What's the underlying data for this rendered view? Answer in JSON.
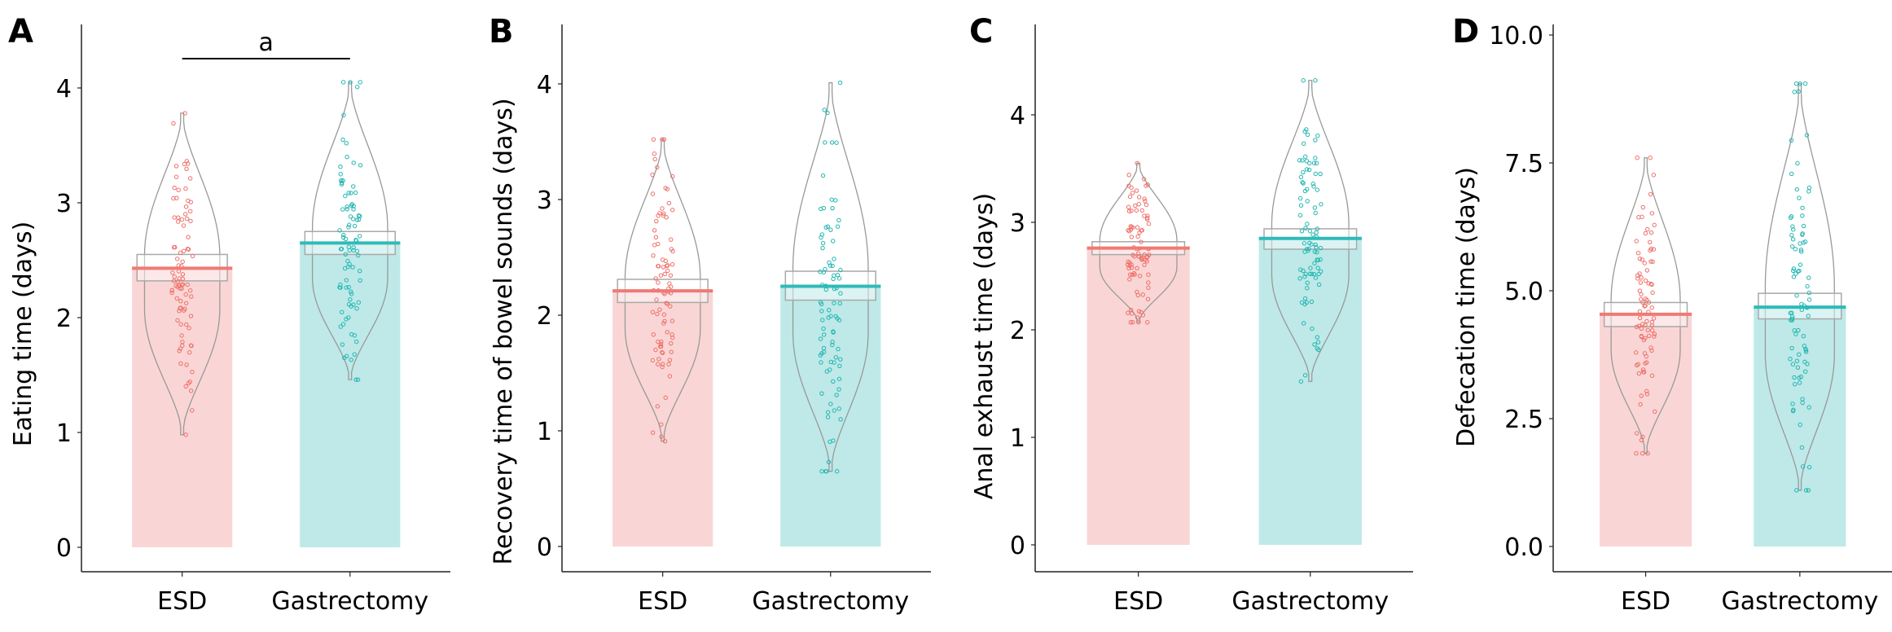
{
  "figure": {
    "colors": {
      "esd_fill": "#f9d6d5",
      "esd_line": "#f07a74",
      "esd_point": "#ee6f69",
      "gastrectomy_fill": "#bee9e8",
      "gastrectomy_line": "#2fbbb8",
      "gastrectomy_point": "#22b6b2",
      "violin": "#999999",
      "ci_box": "#a9a9a9"
    }
  },
  "chart_data": [
    {
      "panel": "A",
      "type": "bar",
      "subtype": "pirate plot (bar + violin + jittered points + 95% CI box)",
      "title": "",
      "xlabel": "",
      "ylabel": "Eating time (days)",
      "ylim": [
        -0.2,
        4.5
      ],
      "yticks": [
        0,
        1,
        2,
        3,
        4
      ],
      "ytick_labels": [
        "0",
        "1",
        "2",
        "3",
        "4"
      ],
      "categories": [
        "ESD",
        "Gastrectomy"
      ],
      "values": [
        2.43,
        2.65
      ],
      "ci": [
        [
          2.32,
          2.55
        ],
        [
          2.55,
          2.75
        ]
      ],
      "ranges": [
        [
          0.98,
          3.78
        ],
        [
          1.46,
          4.05
        ]
      ],
      "significance": {
        "label": "a",
        "between": [
          "ESD",
          "Gastrectomy"
        ],
        "y": 4.3
      },
      "grid": false
    },
    {
      "panel": "B",
      "type": "bar",
      "subtype": "pirate plot (bar + violin + jittered points + 95% CI box)",
      "title": "",
      "xlabel": "",
      "ylabel": "Recovery time of bowel sounds (days)",
      "ylim": [
        -0.2,
        4.5
      ],
      "yticks": [
        0,
        1,
        2,
        3,
        4
      ],
      "ytick_labels": [
        "0",
        "1",
        "2",
        "3",
        "4"
      ],
      "categories": [
        "ESD",
        "Gastrectomy"
      ],
      "values": [
        2.21,
        2.25
      ],
      "ci": [
        [
          2.11,
          2.31
        ],
        [
          2.13,
          2.38
        ]
      ],
      "ranges": [
        [
          0.91,
          3.52
        ],
        [
          0.65,
          4.01
        ]
      ],
      "significance": null,
      "grid": false
    },
    {
      "panel": "C",
      "type": "bar",
      "subtype": "pirate plot (bar + violin + jittered points + 95% CI box)",
      "title": "",
      "xlabel": "",
      "ylabel": "Anal exhaust time (days)",
      "ylim": [
        -0.2,
        4.8
      ],
      "yticks": [
        0,
        1,
        2,
        3,
        4
      ],
      "ytick_labels": [
        "0",
        "1",
        "2",
        "3",
        "4"
      ],
      "categories": [
        "ESD",
        "Gastrectomy"
      ],
      "values": [
        2.76,
        2.85
      ],
      "ci": [
        [
          2.7,
          2.82
        ],
        [
          2.75,
          2.94
        ]
      ],
      "ranges": [
        [
          2.07,
          3.55
        ],
        [
          1.52,
          4.32
        ]
      ],
      "significance": null,
      "grid": false
    },
    {
      "panel": "D",
      "type": "bar",
      "subtype": "pirate plot (bar + violin + jittered points + 95% CI box)",
      "title": "",
      "xlabel": "",
      "ylabel": "Defecation time (days)",
      "ylim": [
        -0.5,
        10.2
      ],
      "yticks": [
        0,
        2.5,
        5,
        7.5,
        10
      ],
      "ytick_labels": [
        "0.0",
        "2.5",
        "5.0",
        "7.5",
        "10.0"
      ],
      "categories": [
        "ESD",
        "Gastrectomy"
      ],
      "values": [
        4.54,
        4.68
      ],
      "ci": [
        [
          4.3,
          4.77
        ],
        [
          4.45,
          4.95
        ]
      ],
      "ranges": [
        [
          1.82,
          7.6
        ],
        [
          1.1,
          9.05
        ]
      ],
      "significance": null,
      "grid": false
    }
  ]
}
